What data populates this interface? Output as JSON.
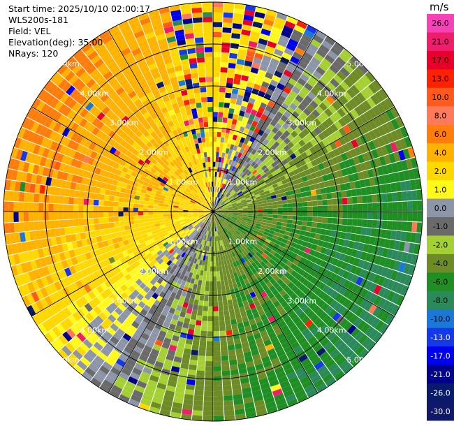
{
  "header": {
    "start_time": "Start time: 2025/10/10 02:00:17",
    "instrument": "WLS200s-181",
    "field": "Field: VEL",
    "elevation": "Elevation(deg): 35.00",
    "nrays": "NRays: 120"
  },
  "chart_data": {
    "type": "heatmap",
    "projection": "polar-ppi",
    "field": "VEL",
    "units": "m/s",
    "elevation_deg": 35.0,
    "nrays": 120,
    "max_range_km": 5.0,
    "range_rings_km": [
      1.0,
      2.0,
      3.0,
      4.0,
      5.0
    ],
    "ring_labels": [
      "1.00km",
      "2.00km",
      "3.00km",
      "4.00km",
      "5.00km"
    ],
    "spoke_angles_deg": [
      0,
      30,
      60,
      90,
      120,
      150,
      180,
      210,
      240,
      270,
      300,
      330
    ],
    "colorbar": {
      "unit_label": "m/s",
      "levels": [
        {
          "label": "26.0",
          "color": "#f542b7"
        },
        {
          "label": "21.0",
          "color": "#ee1e6a"
        },
        {
          "label": "17.0",
          "color": "#e8002a"
        },
        {
          "label": "13.0",
          "color": "#ff2200"
        },
        {
          "label": "10.0",
          "color": "#ff5a1c"
        },
        {
          "label": "8.0",
          "color": "#ff7a5a"
        },
        {
          "label": "6.0",
          "color": "#ff7d0a"
        },
        {
          "label": "4.0",
          "color": "#ffb300"
        },
        {
          "label": "2.0",
          "color": "#ffd800"
        },
        {
          "label": "1.0",
          "color": "#fffa1a"
        },
        {
          "label": "0.0",
          "color": "#8c96a8"
        },
        {
          "label": "-1.0",
          "color": "#6a6a6a"
        },
        {
          "label": "-2.0",
          "color": "#a4d034"
        },
        {
          "label": "-4.0",
          "color": "#6e8c26"
        },
        {
          "label": "-6.0",
          "color": "#1f8f24"
        },
        {
          "label": "-8.0",
          "color": "#2a8a5a"
        },
        {
          "label": "-10.0",
          "color": "#1a78d8"
        },
        {
          "label": "-13.0",
          "color": "#1538e8"
        },
        {
          "label": "-17.0",
          "color": "#0000ee"
        },
        {
          "label": "-21.0",
          "color": "#00008a"
        },
        {
          "label": "-26.0",
          "color": "#0a1a6a"
        },
        {
          "label": "-30.0",
          "color": "#10186a"
        }
      ]
    }
  }
}
